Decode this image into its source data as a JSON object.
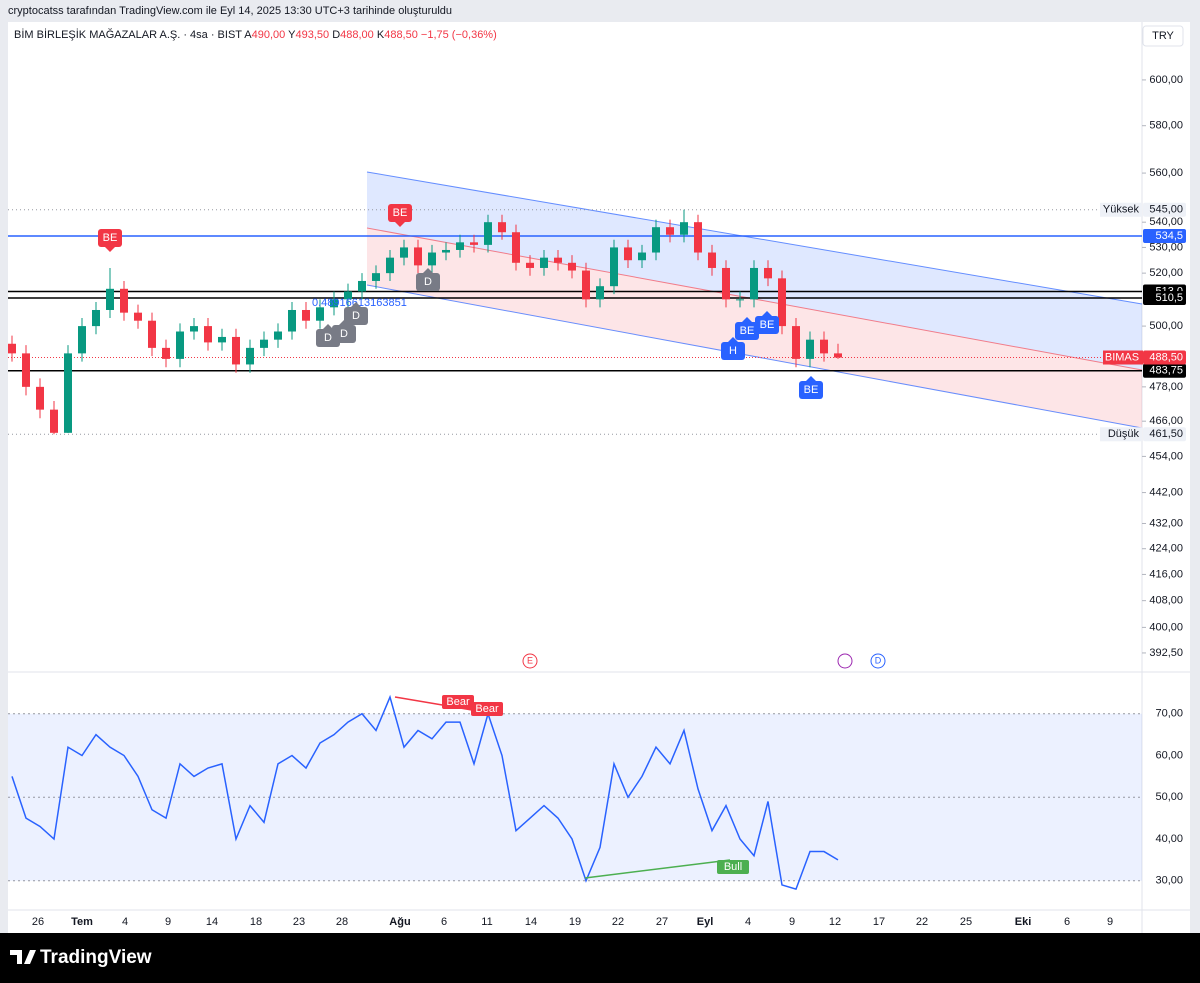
{
  "header": {
    "caption": "cryptocatss tarafından TradingView.com ile Eyl 14, 2025 13:30 UTC+3 tarihinde oluşturuldu",
    "symbol": "BİM BİRLEŞİK MAĞAZALAR A.Ş. · 4sa · BIST",
    "o_key": "A",
    "o": "490,00",
    "h_key": "Y",
    "h": "493,50",
    "l_key": "D",
    "l": "488,00",
    "c_key": "K",
    "c": "488,50",
    "change": "−1,75 (−0,36%)",
    "currency": "TRY",
    "brand": "TradingView"
  },
  "chart_data": [
    {
      "type": "candlestick",
      "log_scale": true,
      "ylim": [
        387,
        626.3
      ],
      "yticks": [
        {
          "value": 392.5,
          "label": "392,50"
        },
        {
          "value": 400,
          "label": "400,00"
        },
        {
          "value": 408,
          "label": "408,00"
        },
        {
          "value": 416,
          "label": "416,00"
        },
        {
          "value": 424,
          "label": "424,00"
        },
        {
          "value": 432,
          "label": "432,00"
        },
        {
          "value": 442,
          "label": "442,00"
        },
        {
          "value": 454,
          "label": "454,00"
        },
        {
          "value": 466,
          "label": "466,00"
        },
        {
          "value": 478,
          "label": "478,00"
        },
        {
          "value": 500,
          "label": "500,00"
        },
        {
          "value": 520,
          "label": "520,00"
        },
        {
          "value": 530,
          "label": "530,00"
        },
        {
          "value": 540,
          "label": "540,00"
        },
        {
          "value": 560,
          "label": "560,00"
        },
        {
          "value": 580,
          "label": "580,00"
        },
        {
          "value": 600,
          "label": "600,00"
        }
      ],
      "x_labels": [
        "26",
        "Tem",
        "4",
        "9",
        "14",
        "18",
        "23",
        "28",
        "Ağu",
        "6",
        "11",
        "14",
        "19",
        "22",
        "27",
        "Eyl",
        "4",
        "9",
        "12",
        "17",
        "22",
        "25",
        "Eki",
        "6",
        "9"
      ],
      "series": [
        {
          "name": "BIMAS",
          "up_color": "#089981",
          "down_color": "#f23645",
          "open": [
            493.5,
            490,
            478,
            470,
            462,
            490,
            500,
            506,
            514,
            505,
            502,
            492,
            488,
            498,
            500,
            494,
            496,
            486,
            492,
            495,
            498,
            506,
            502,
            507,
            510,
            513,
            517,
            520,
            526,
            530,
            523,
            528,
            529,
            532,
            531,
            540,
            536,
            524,
            522,
            526,
            524,
            521,
            510,
            515,
            530,
            525,
            528,
            538,
            535,
            540,
            528,
            522,
            510,
            510,
            522,
            518,
            500,
            488,
            495,
            490
          ],
          "high": [
            496.5,
            493,
            481,
            473,
            493,
            503,
            509,
            522,
            517,
            508,
            505,
            495,
            501,
            503,
            503,
            499,
            499,
            495,
            498,
            501,
            509,
            509,
            510,
            513,
            516,
            520,
            523,
            529,
            533,
            533,
            531,
            532,
            535,
            535,
            543,
            543,
            539,
            527,
            529,
            529,
            527,
            524,
            518,
            533,
            533,
            531,
            541,
            541,
            545,
            543,
            531,
            525,
            513,
            525,
            525,
            521,
            503,
            498,
            498,
            493.5
          ],
          "low": [
            487,
            475,
            467,
            461.5,
            462,
            487,
            497,
            503,
            502,
            499,
            489,
            485,
            485,
            495,
            491,
            491,
            483,
            483,
            489,
            492,
            495,
            499,
            499,
            504,
            507,
            510,
            514,
            517,
            523,
            520,
            520,
            525,
            526,
            528,
            528,
            533,
            521,
            519,
            519,
            521,
            518,
            507,
            507,
            512,
            522,
            522,
            525,
            532,
            532,
            525,
            519,
            507,
            507,
            507,
            515,
            497,
            485,
            485,
            487,
            488
          ],
          "close": [
            490,
            478,
            470,
            462,
            490,
            500,
            506,
            514,
            505,
            502,
            492,
            488,
            498,
            500,
            494,
            496,
            486,
            492,
            495,
            498,
            506,
            502,
            507,
            510,
            513,
            517,
            520,
            526,
            530,
            523,
            528,
            529,
            532,
            531,
            540,
            536,
            524,
            522,
            526,
            524,
            521,
            510,
            515,
            530,
            525,
            528,
            538,
            535,
            540,
            528,
            522,
            510,
            510,
            522,
            518,
            500,
            488,
            495,
            490,
            488.5
          ]
        }
      ],
      "last_price": {
        "value": 488.5,
        "label": "488,50",
        "color": "#f23645"
      },
      "hlines": [
        {
          "value": 534.5,
          "label": "534,5",
          "color": "#2962ff"
        },
        {
          "value": 513,
          "label": "513,0",
          "color": "#000000"
        },
        {
          "value": 510.5,
          "label": "510,5",
          "color": "#000000"
        },
        {
          "value": 483.75,
          "label": "483,75",
          "color": "#000000"
        }
      ],
      "extremes": [
        {
          "name": "Yüksek",
          "value": 545,
          "label": "545,00"
        },
        {
          "name": "Düşük",
          "value": 461.5,
          "label": "461,50"
        }
      ],
      "markers": [
        "BE",
        "BE",
        "D",
        "D",
        "D",
        "D",
        "BE",
        "BE",
        "BE",
        "H"
      ],
      "fib_text": "0.48916613163851",
      "events": [
        "E",
        "D"
      ]
    },
    {
      "type": "line",
      "ylim": [
        23,
        80
      ],
      "yticks": [
        {
          "value": 30,
          "label": "30,00"
        },
        {
          "value": 40,
          "label": "40,00"
        },
        {
          "value": 50,
          "label": "50,00"
        },
        {
          "value": 60,
          "label": "60,00"
        },
        {
          "value": 70,
          "label": "70,00"
        }
      ],
      "band": [
        30,
        70
      ],
      "color": "#2962ff",
      "values": [
        55,
        45,
        43,
        40,
        62,
        60,
        65,
        62,
        60,
        55,
        47,
        45,
        58,
        55,
        57,
        58,
        40,
        48,
        44,
        58,
        60,
        57,
        63,
        65,
        68,
        70,
        66,
        74,
        62,
        66,
        64,
        68,
        68,
        58,
        70,
        60,
        42,
        45,
        48,
        45,
        40,
        30,
        38,
        58,
        50,
        55,
        62,
        58,
        66,
        52,
        42,
        48,
        40,
        36,
        49,
        29,
        28,
        37,
        37,
        35
      ],
      "annotations": [
        "Bear",
        "Bear",
        "Bull"
      ]
    }
  ]
}
